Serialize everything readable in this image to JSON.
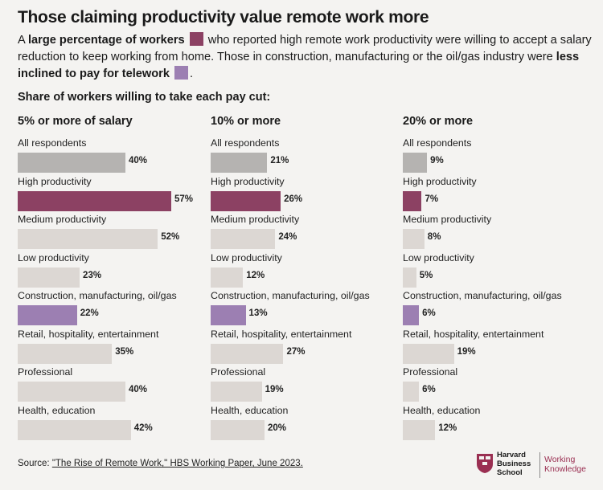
{
  "title": "Those claiming productivity value remote work more",
  "intro": {
    "p1": "A ",
    "b1": "large percentage of workers",
    "p2": " who reported high remote work productivity were willing to accept a salary reduction to keep working from home. Those in construction, manufacturing or the oil/gas industry were ",
    "b2": "less inclined to pay for telework",
    "p3": "."
  },
  "subheading": "Share of workers willing to take each pay cut:",
  "colors": {
    "all": "#b5b3b1",
    "high": "#8c4163",
    "other": "#dcd7d3",
    "construction": "#9c7fb2"
  },
  "chart_data": {
    "type": "bar",
    "categories": [
      "All respondents",
      "High productivity",
      "Medium productivity",
      "Low productivity",
      "Construction, manufacturing, oil/gas",
      "Retail, hospitality, entertainment",
      "Professional",
      "Health, education"
    ],
    "category_styles": [
      "all",
      "high",
      "other",
      "other",
      "construction",
      "other",
      "other",
      "other"
    ],
    "value_labels": [
      "40%",
      "57%",
      "52%",
      "23%",
      "22%",
      "35%",
      "40%",
      "42%",
      "21%",
      "26%",
      "24%",
      "12%",
      "13%",
      "27%",
      "19%",
      "20%",
      "9%",
      "7%",
      "8%",
      "5%",
      "6%",
      "19%",
      "6%",
      "12%"
    ],
    "series": [
      {
        "name": "5% or more of salary",
        "values": [
          40,
          57,
          52,
          23,
          22,
          35,
          40,
          42
        ]
      },
      {
        "name": "10% or more",
        "values": [
          21,
          26,
          24,
          12,
          13,
          27,
          19,
          20
        ]
      },
      {
        "name": "20% or more",
        "values": [
          9,
          7,
          8,
          5,
          6,
          19,
          6,
          12
        ]
      }
    ]
  },
  "source": {
    "label": "Source: ",
    "link": "\"The Rise of Remote Work,\" HBS Working Paper, June 2023."
  },
  "logo": {
    "hbs_line1": "Harvard",
    "hbs_line2": "Business",
    "hbs_line3": "School",
    "wk_line1": "Working",
    "wk_line2": "Knowledge"
  }
}
